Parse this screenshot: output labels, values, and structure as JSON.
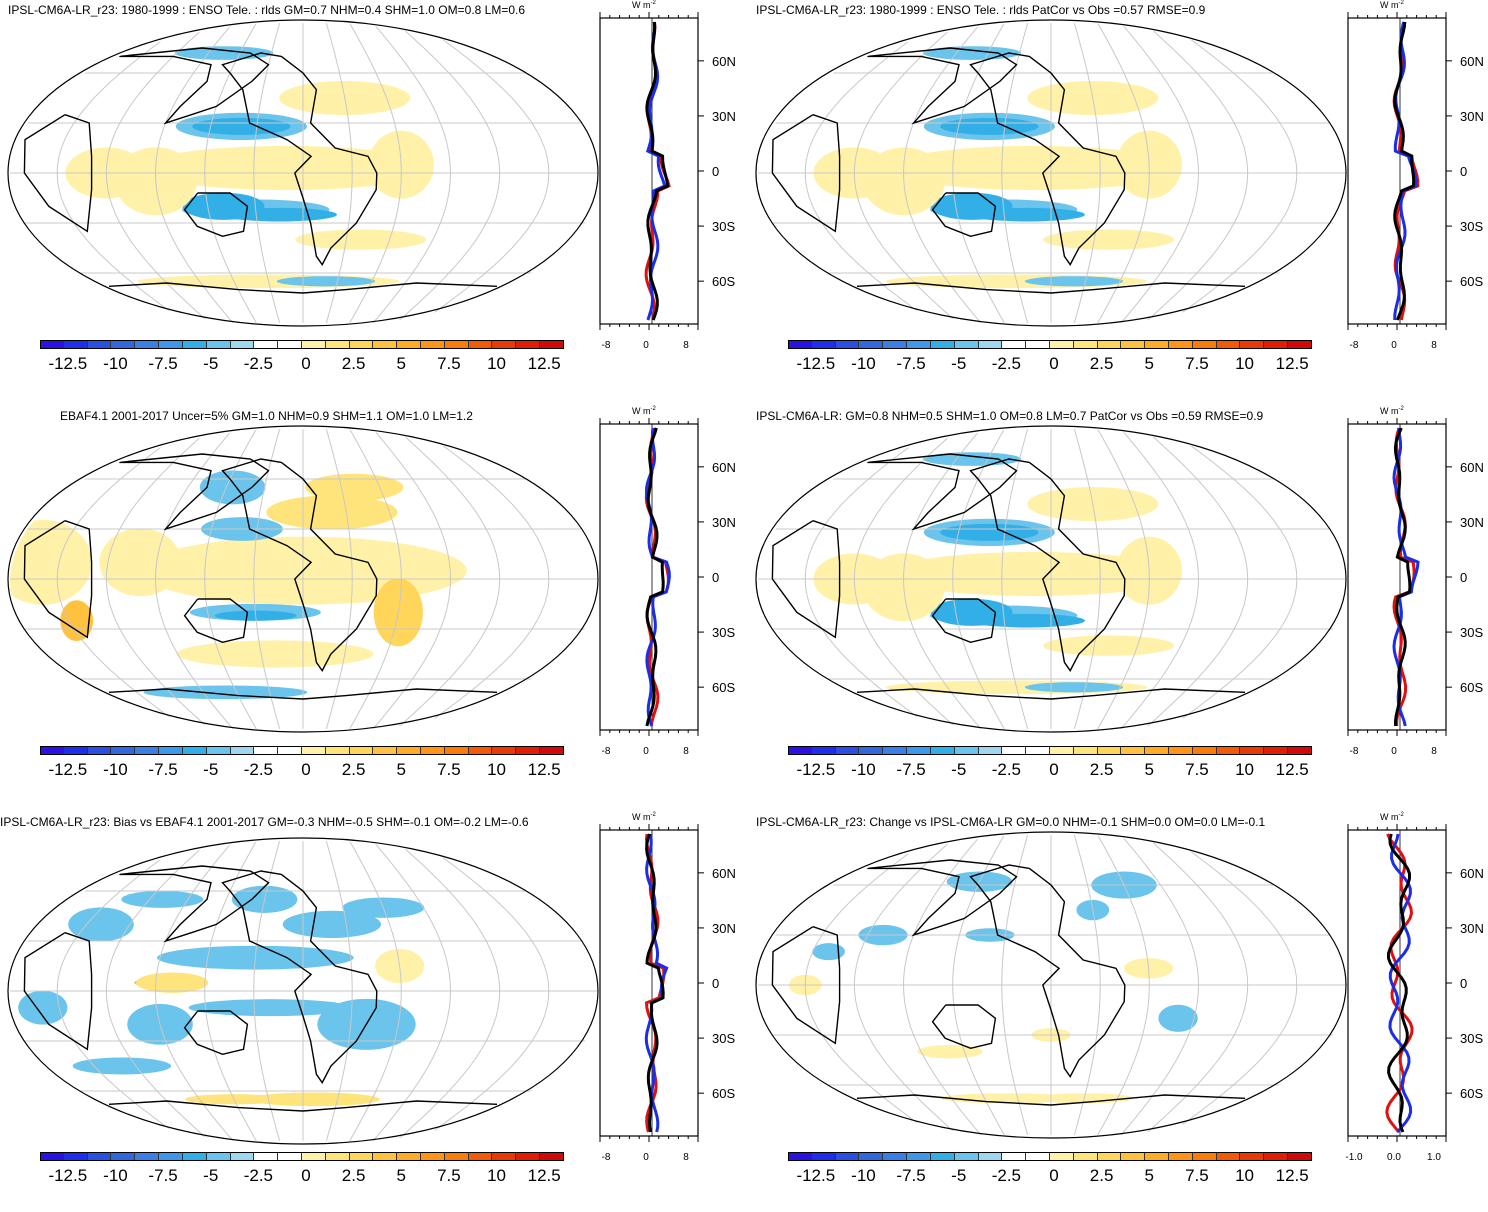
{
  "panels": [
    {
      "title": "IPSL-CM6A-LR_r23: 1980-1999 : ENSO Tele. : rlds GM=0.7 NHM=0.4 SHM=1.0 OM=0.8 LM=0.6",
      "profile_ticks": [
        "-8",
        "0",
        "8"
      ],
      "lat_labels": [
        "60N",
        "30N",
        "0",
        "30S",
        "60S"
      ],
      "pattern": "model"
    },
    {
      "title": "IPSL-CM6A-LR_r23: 1980-1999 : ENSO Tele. : rlds PatCor vs Obs =0.57 RMSE=0.9",
      "profile_ticks": [
        "-8",
        "0",
        "8"
      ],
      "lat_labels": [
        "60N",
        "30N",
        "0",
        "30S",
        "60S"
      ],
      "pattern": "model"
    },
    {
      "title": "EBAF4.1 2001-2017 Uncer=5% GM=1.0 NHM=0.9 SHM=1.1 OM=1.0 LM=1.2",
      "profile_ticks": [
        "-8",
        "0",
        "8"
      ],
      "lat_labels": [
        "60N",
        "30N",
        "0",
        "30S",
        "60S"
      ],
      "pattern": "obs"
    },
    {
      "title": "IPSL-CM6A-LR: GM=0.8 NHM=0.5 SHM=1.0 OM=0.8 LM=0.7 PatCor vs Obs =0.59 RMSE=0.9",
      "profile_ticks": [
        "-8",
        "0",
        "8"
      ],
      "lat_labels": [
        "60N",
        "30N",
        "0",
        "30S",
        "60S"
      ],
      "pattern": "model"
    },
    {
      "title": "IPSL-CM6A-LR_r23: Bias vs EBAF4.1 2001-2017 GM=-0.3 NHM=-0.5 SHM=-0.1 OM=-0.2 LM=-0.6",
      "profile_ticks": [
        "-8",
        "0",
        "8"
      ],
      "lat_labels": [
        "60N",
        "30N",
        "0",
        "30S",
        "60S"
      ],
      "pattern": "bias"
    },
    {
      "title": "IPSL-CM6A-LR_r23: Change vs IPSL-CM6A-LR GM=0.0 NHM=-0.1 SHM=0.0 OM=0.0 LM=-0.1",
      "profile_ticks": [
        "-1.0",
        "0.0",
        "1.0"
      ],
      "lat_labels": [
        "60N",
        "30N",
        "0",
        "30S",
        "60S"
      ],
      "pattern": "change"
    }
  ],
  "unit_label": "W m",
  "unit_exp": "-2",
  "colorbar": {
    "labels": [
      "-12.5",
      "-10",
      "-7.5",
      "-5",
      "-2.5",
      "0",
      "2.5",
      "5",
      "7.5",
      "10",
      "12.5"
    ],
    "colors": [
      "#2a12e0",
      "#1f2ee8",
      "#2b4fe0",
      "#3467dc",
      "#3b7fe4",
      "#3f97ea",
      "#33afe8",
      "#6bc4ec",
      "#9fd6f0",
      "#ffffff",
      "#ffffff",
      "#fff2a8",
      "#ffe47c",
      "#ffd55a",
      "#ffc23f",
      "#ffab2a",
      "#ff9416",
      "#fb7a0c",
      "#f25a08",
      "#e83a06",
      "#e01e06",
      "#cf0a0a"
    ]
  }
}
